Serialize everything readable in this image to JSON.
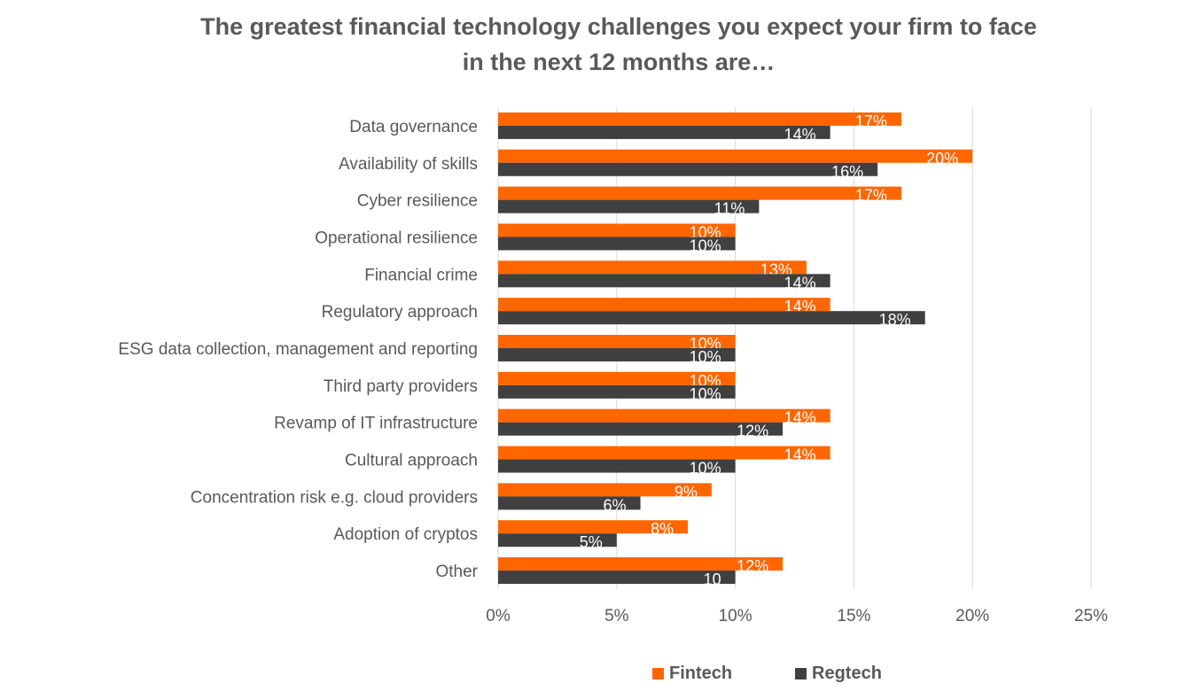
{
  "chart_data": {
    "type": "bar",
    "orientation": "horizontal",
    "title": [
      "The greatest financial technology challenges you expect your firm to face",
      "in the next 12 months are…"
    ],
    "categories": [
      "Data governance",
      "Availability of skills",
      "Cyber resilience",
      "Operational resilience",
      "Financial crime",
      "Regulatory approach",
      "ESG data collection, management and reporting",
      "Third party providers",
      "Revamp of IT infrastructure",
      "Cultural approach",
      "Concentration risk e.g. cloud providers",
      "Adoption of cryptos",
      "Other"
    ],
    "series": [
      {
        "name": "Fintech",
        "color": "#FF6600",
        "values": [
          17,
          20,
          17,
          10,
          13,
          14,
          10,
          10,
          14,
          14,
          9,
          8,
          12
        ],
        "labels": [
          "17%",
          "20%",
          "17%",
          "10%",
          "13%",
          "14%",
          "10%",
          "10%",
          "14%",
          "14%",
          "9%",
          "8%",
          "12%"
        ]
      },
      {
        "name": "Regtech",
        "color": "#404040",
        "values": [
          14,
          16,
          11,
          10,
          14,
          18,
          10,
          10,
          12,
          10,
          6,
          5,
          10
        ],
        "labels": [
          "14%",
          "16%",
          "11%",
          "10%",
          "14%",
          "18%",
          "10%",
          "10%",
          "12%",
          "10%",
          "6%",
          "5%",
          "10"
        ]
      }
    ],
    "xlim": [
      0,
      25
    ],
    "xticks": [
      "0%",
      "5%",
      "10%",
      "15%",
      "20%",
      "25%"
    ],
    "xtick_values": [
      0,
      5,
      10,
      15,
      20,
      25
    ],
    "grid": true,
    "legend": "bottom"
  }
}
